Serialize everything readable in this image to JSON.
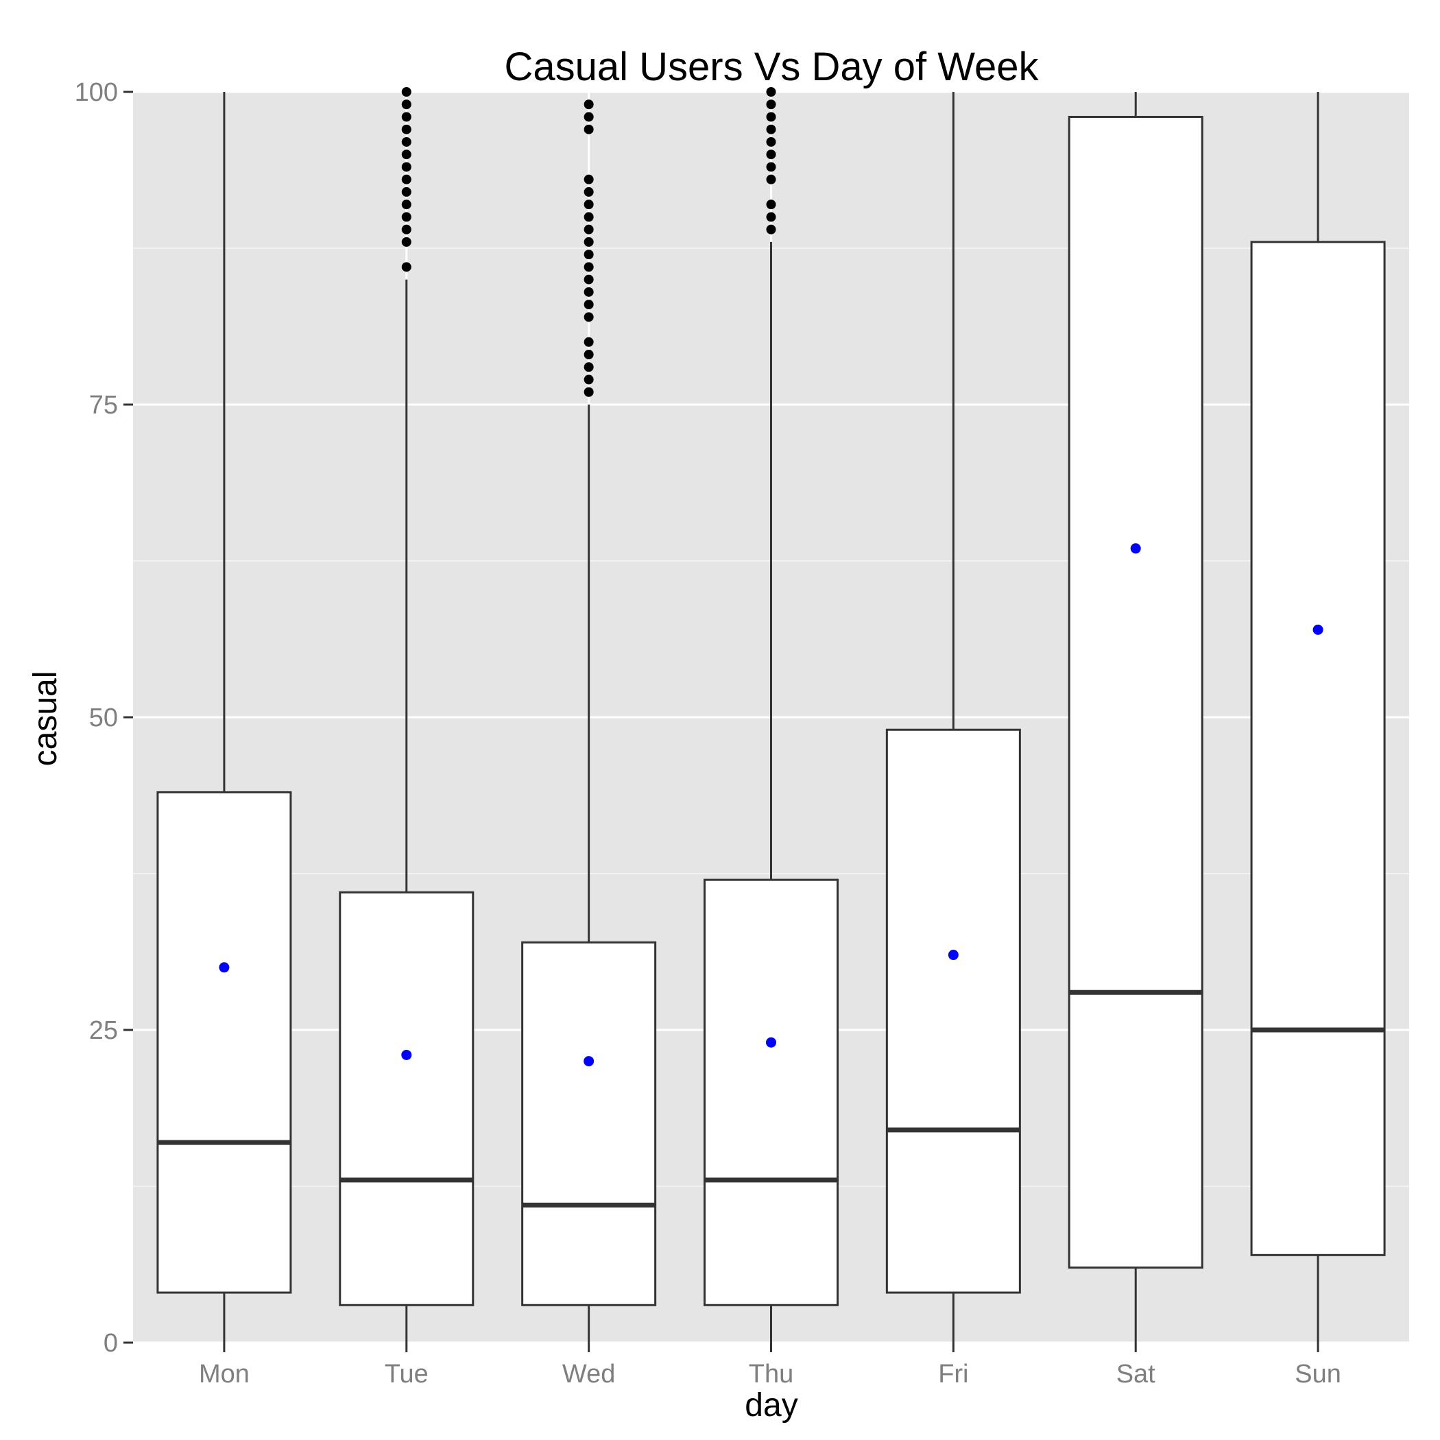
{
  "chart_data": {
    "type": "boxplot",
    "title": "Casual Users Vs Day of Week",
    "xlabel": "day",
    "ylabel": "casual",
    "ylim": [
      0,
      100
    ],
    "yticks": [
      0,
      25,
      50,
      75,
      100
    ],
    "grid": true,
    "legend": "none",
    "categories": [
      "Mon",
      "Tue",
      "Wed",
      "Thu",
      "Fri",
      "Sat",
      "Sun"
    ],
    "boxes": [
      {
        "day": "Mon",
        "lower_whisker": 0,
        "q1": 4,
        "median": 16,
        "q3": 44,
        "upper_whisker": 100,
        "mean": 30,
        "outliers": []
      },
      {
        "day": "Tue",
        "lower_whisker": 0,
        "q1": 3,
        "median": 13,
        "q3": 36,
        "upper_whisker": 85,
        "mean": 23,
        "outliers": [
          86,
          88,
          89,
          90,
          91,
          92,
          93,
          94,
          95,
          96,
          97,
          98,
          99,
          100
        ]
      },
      {
        "day": "Wed",
        "lower_whisker": 0,
        "q1": 3,
        "median": 11,
        "q3": 32,
        "upper_whisker": 75,
        "mean": 22.5,
        "outliers": [
          76,
          77,
          78,
          79,
          80,
          82,
          83,
          84,
          85,
          86,
          87,
          88,
          89,
          90,
          91,
          92,
          93,
          97,
          98,
          99
        ]
      },
      {
        "day": "Thu",
        "lower_whisker": 0,
        "q1": 3,
        "median": 13,
        "q3": 37,
        "upper_whisker": 88,
        "mean": 24,
        "outliers": [
          89,
          90,
          91,
          93,
          94,
          95,
          96,
          97,
          98,
          99,
          100
        ]
      },
      {
        "day": "Fri",
        "lower_whisker": 0,
        "q1": 4,
        "median": 17,
        "q3": 49,
        "upper_whisker": 100,
        "mean": 31,
        "outliers": []
      },
      {
        "day": "Sat",
        "lower_whisker": 0,
        "q1": 6,
        "median": 28,
        "q3": 98,
        "upper_whisker": 100,
        "mean": 63.5,
        "outliers": []
      },
      {
        "day": "Sun",
        "lower_whisker": 0,
        "q1": 7,
        "median": 25,
        "q3": 88,
        "upper_whisker": 100,
        "mean": 57,
        "outliers": []
      }
    ],
    "colors": {
      "panel": "#e5e5e5",
      "grid_major": "#ffffff",
      "grid_minor": "#f2f2f2",
      "box_fill": "#ffffff",
      "box_stroke": "#333333",
      "mean_point": "#0000ff",
      "outlier": "#000000",
      "tick_text": "#7f7f7f"
    }
  }
}
